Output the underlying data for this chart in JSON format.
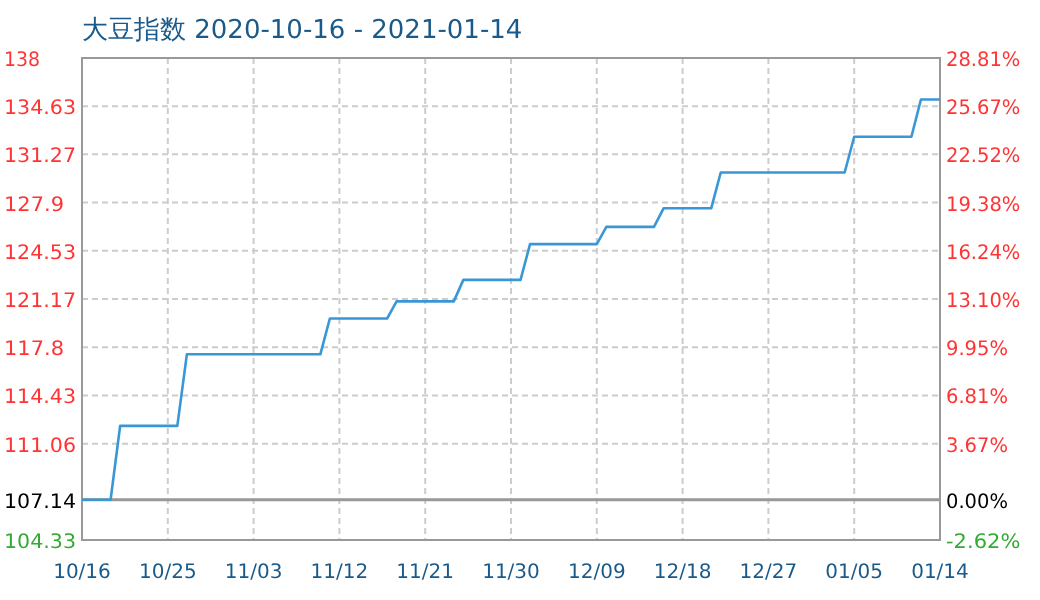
{
  "chart_data": {
    "type": "line",
    "title": "大豆指数 2020-10-16 - 2021-01-14",
    "x": [
      "2020-10-16",
      "2020-10-19",
      "2020-10-20",
      "2020-10-26",
      "2020-10-27",
      "2020-11-10",
      "2020-11-11",
      "2020-11-17",
      "2020-11-18",
      "2020-11-24",
      "2020-11-25",
      "2020-12-01",
      "2020-12-02",
      "2020-12-09",
      "2020-12-10",
      "2020-12-15",
      "2020-12-16",
      "2020-12-21",
      "2020-12-22",
      "2021-01-04",
      "2021-01-05",
      "2021-01-11",
      "2021-01-12",
      "2021-01-14"
    ],
    "series": [
      {
        "color": "#3a97d6",
        "values": [
          107.14,
          107.14,
          112.3,
          112.3,
          117.3,
          117.3,
          119.8,
          119.8,
          121.0,
          121.0,
          122.5,
          122.5,
          125.0,
          125.0,
          126.2,
          126.2,
          127.5,
          127.5,
          130.0,
          130.0,
          132.5,
          132.5,
          135.1,
          135.1
        ]
      }
    ],
    "xlim": [
      "2020-10-16",
      "2021-01-14"
    ],
    "xticks": [
      {
        "value": "2020-10-16",
        "label": "10/16"
      },
      {
        "value": "2020-10-25",
        "label": "10/25"
      },
      {
        "value": "2020-11-03",
        "label": "11/03"
      },
      {
        "value": "2020-11-12",
        "label": "11/12"
      },
      {
        "value": "2020-11-21",
        "label": "11/21"
      },
      {
        "value": "2020-11-30",
        "label": "11/30"
      },
      {
        "value": "2020-12-09",
        "label": "12/09"
      },
      {
        "value": "2020-12-18",
        "label": "12/18"
      },
      {
        "value": "2020-12-27",
        "label": "12/27"
      },
      {
        "value": "2021-01-05",
        "label": "01/05"
      },
      {
        "value": "2021-01-14",
        "label": "01/14"
      }
    ],
    "ylim": [
      104.33,
      138
    ],
    "yticks": [
      104.33,
      107.14,
      111.06,
      114.43,
      117.8,
      121.17,
      124.53,
      127.9,
      131.27,
      134.63,
      138
    ],
    "y2lim": [
      -2.62,
      28.81
    ],
    "y2ticks": [
      {
        "value": -2.62,
        "label": "-2.62%"
      },
      {
        "value": 0,
        "label": "0.00%"
      },
      {
        "value": 3.67,
        "label": "3.67%"
      },
      {
        "value": 6.81,
        "label": "6.81%"
      },
      {
        "value": 9.95,
        "label": "9.95%"
      },
      {
        "value": 13.1,
        "label": "13.10%"
      },
      {
        "value": 16.24,
        "label": "16.24%"
      },
      {
        "value": 19.38,
        "label": "19.38%"
      },
      {
        "value": 22.52,
        "label": "22.52%"
      },
      {
        "value": 25.67,
        "label": "25.67%"
      },
      {
        "value": 28.81,
        "label": "28.81%"
      }
    ],
    "ref_lines": [
      {
        "axis": "y",
        "value": 107.14,
        "color": "#999999"
      }
    ],
    "grid": true,
    "marker": "none",
    "line_style": "solid"
  }
}
